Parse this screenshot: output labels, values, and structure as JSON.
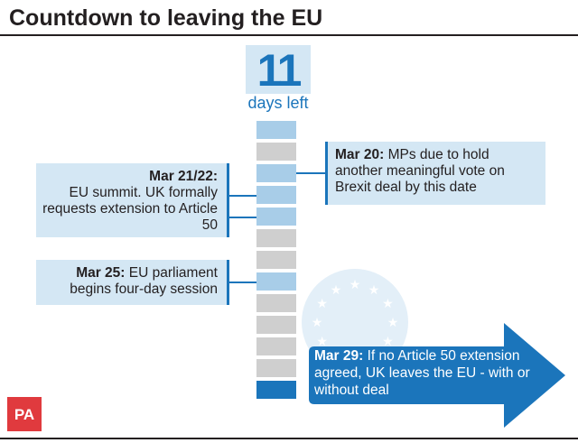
{
  "title": "Countdown to leaving the EU",
  "countdown": {
    "number": "11",
    "unit": "days left"
  },
  "segments": [
    "blue",
    "grey",
    "blue",
    "blue",
    "blue",
    "grey",
    "grey",
    "blue",
    "grey",
    "grey",
    "grey",
    "grey",
    "dark"
  ],
  "events": {
    "mar20": {
      "date": "Mar 20:",
      "text": "MPs due to hold another meaningful vote on Brexit deal by this date"
    },
    "mar21": {
      "date": "Mar 21/22:",
      "text": "EU summit. UK formally requests extension to Article 50"
    },
    "mar25": {
      "date": "Mar 25:",
      "text": "EU parliament begins four-day session"
    },
    "mar29": {
      "date": "Mar 29:",
      "text": "If no Article 50 extension agreed, UK leaves the EU - with or without deal"
    }
  },
  "logo": "PA",
  "icons": {
    "emblem": "eu-stars-emblem",
    "arrow": "right-arrow"
  },
  "colors": {
    "accent": "#1b75bb",
    "box_fill": "#d4e7f4",
    "segment_blue": "#a8cde8",
    "segment_grey": "#cfcfcf",
    "logo_red": "#e03a3e"
  }
}
